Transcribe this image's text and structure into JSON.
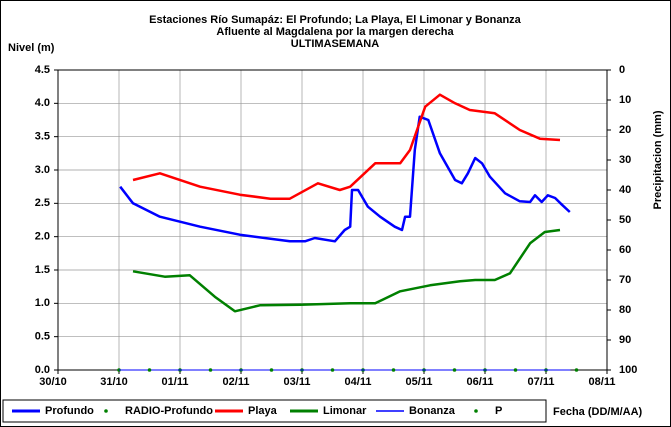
{
  "chart_data": {
    "type": "line",
    "title": "Estaciones Río Sumapáz: El Profundo; La Playa, El Limonar y Bonanza",
    "subtitle": "Afluente al Magdalena por la margen derecha",
    "subtitle2": "ULTIMASEMANA",
    "y_label": "Nivel (m)",
    "y2_label": "Precipitacion (mm)",
    "x_label": "Fecha (DD/M/AA)",
    "xlim": [
      0,
      9
    ],
    "xticks": [
      {
        "value": 0,
        "label": "30/10"
      },
      {
        "value": 1,
        "label": "31/10"
      },
      {
        "value": 2,
        "label": "01/11"
      },
      {
        "value": 3,
        "label": "02/11"
      },
      {
        "value": 4,
        "label": "03/11"
      },
      {
        "value": 5,
        "label": "04/11"
      },
      {
        "value": 6,
        "label": "05/11"
      },
      {
        "value": 7,
        "label": "06/11"
      },
      {
        "value": 8,
        "label": "07/11"
      },
      {
        "value": 9,
        "label": "08/11"
      }
    ],
    "ylim": [
      0,
      4.5
    ],
    "yticks": [
      {
        "value": 0,
        "label": "0.0"
      },
      {
        "value": 0.5,
        "label": "0.5"
      },
      {
        "value": 1,
        "label": "1.0"
      },
      {
        "value": 1.5,
        "label": "1.5"
      },
      {
        "value": 2,
        "label": "2.0"
      },
      {
        "value": 2.5,
        "label": "2.5"
      },
      {
        "value": 3,
        "label": "3.0"
      },
      {
        "value": 3.5,
        "label": "3.5"
      },
      {
        "value": 4,
        "label": "4.0"
      },
      {
        "value": 4.5,
        "label": "4.5"
      }
    ],
    "y2lim": [
      0,
      100
    ],
    "y2_reversed": true,
    "y2ticks": [
      0,
      10,
      20,
      30,
      40,
      50,
      60,
      70,
      80,
      90,
      100
    ],
    "grid": true,
    "legend": "bottom",
    "series": [
      {
        "name": "Profundo",
        "color": "#0000ff",
        "style": "line",
        "width": 2.5,
        "x": [
          1.02,
          1.23,
          1.67,
          2.33,
          2.98,
          3.8,
          4.05,
          4.21,
          4.54,
          4.7,
          4.79,
          4.82,
          4.92,
          5.08,
          5.28,
          5.52,
          5.64,
          5.69,
          5.77,
          5.85,
          5.93,
          6.07,
          6.26,
          6.51,
          6.62,
          6.72,
          6.84,
          6.95,
          7.08,
          7.33,
          7.57,
          7.74,
          7.82,
          7.93,
          8.03,
          8.15,
          8.26,
          8.39
        ],
        "values": [
          2.75,
          2.5,
          2.3,
          2.15,
          2.03,
          1.93,
          1.93,
          1.98,
          1.93,
          2.1,
          2.15,
          2.7,
          2.7,
          2.45,
          2.3,
          2.15,
          2.1,
          2.3,
          2.3,
          3.3,
          3.8,
          3.75,
          3.25,
          2.85,
          2.8,
          2.95,
          3.18,
          3.1,
          2.9,
          2.65,
          2.53,
          2.52,
          2.62,
          2.52,
          2.62,
          2.58,
          2.48,
          2.37
        ]
      },
      {
        "name": "RADIO-Profundo",
        "color": "#008000",
        "style": "dots",
        "x": [
          1.0,
          2.0,
          3.0,
          4.0,
          5.0,
          6.0,
          7.0,
          8.0
        ],
        "values": [
          0,
          0,
          0,
          0,
          0,
          0,
          0,
          0
        ]
      },
      {
        "name": "Playa",
        "color": "#ff0000",
        "style": "line",
        "width": 2.5,
        "x": [
          1.23,
          1.67,
          2.33,
          2.98,
          3.48,
          3.8,
          4.26,
          4.62,
          4.79,
          5.2,
          5.61,
          5.77,
          6.02,
          6.26,
          6.51,
          6.75,
          7.16,
          7.57,
          7.9,
          8.23
        ],
        "values": [
          2.85,
          2.95,
          2.75,
          2.63,
          2.57,
          2.57,
          2.8,
          2.7,
          2.75,
          3.1,
          3.1,
          3.3,
          3.95,
          4.13,
          4.0,
          3.9,
          3.85,
          3.6,
          3.47,
          3.45
        ]
      },
      {
        "name": "Limonar",
        "color": "#008000",
        "style": "line",
        "width": 2.5,
        "x": [
          1.23,
          1.75,
          2.16,
          2.57,
          2.9,
          3.31,
          3.97,
          4.79,
          5.2,
          5.61,
          6.1,
          6.59,
          6.84,
          7.16,
          7.41,
          7.74,
          7.98,
          8.23
        ],
        "values": [
          1.48,
          1.4,
          1.42,
          1.1,
          0.88,
          0.97,
          0.98,
          1.0,
          1.0,
          1.18,
          1.27,
          1.33,
          1.35,
          1.35,
          1.45,
          1.9,
          2.07,
          2.1
        ]
      },
      {
        "name": "Bonanza",
        "color": "#0000ff",
        "style": "line",
        "width": 1,
        "x": [
          1.0,
          8.4
        ],
        "values": [
          0,
          0
        ]
      },
      {
        "name": "P",
        "color": "#008000",
        "style": "dots",
        "x": [
          1.5,
          2.5,
          3.5,
          4.5,
          5.5,
          6.5,
          7.5,
          8.5
        ],
        "values": [
          0,
          0,
          0,
          0,
          0,
          0,
          0,
          0
        ]
      }
    ]
  }
}
